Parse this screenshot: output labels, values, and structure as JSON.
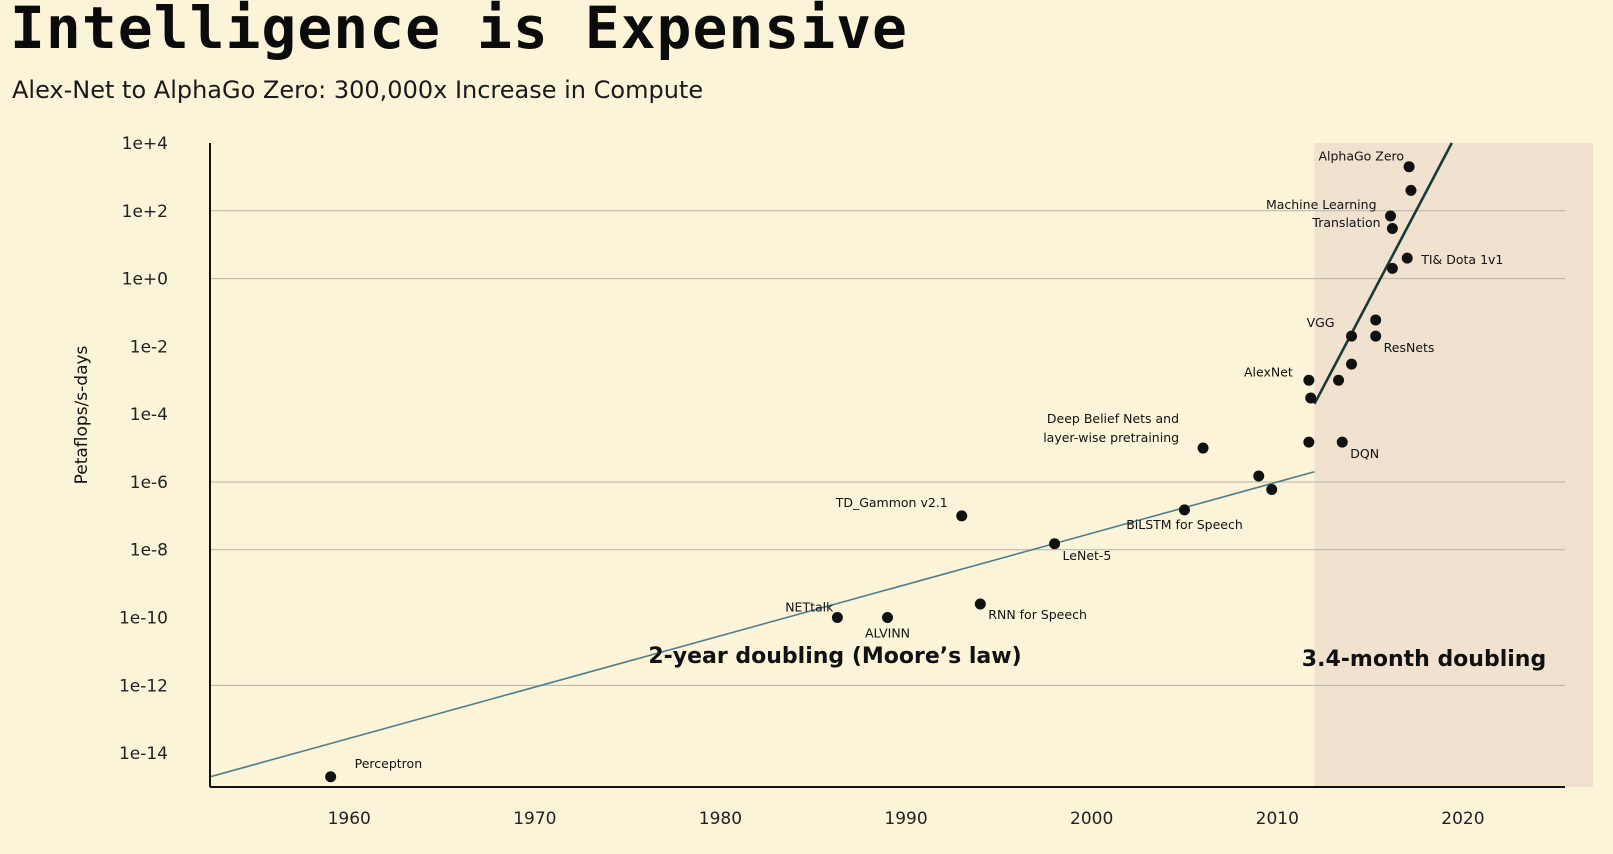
{
  "header": {
    "title": "Intelligence is Expensive",
    "subtitle": "Alex-Net to AlphaGo Zero: 300,000x Increase in Compute"
  },
  "chart_data": {
    "type": "scatter",
    "title": "Intelligence is Expensive",
    "subtitle": "Alex-Net to AlphaGo Zero: 300,000x Increase in Compute",
    "xlabel": "",
    "ylabel": "Petaflops/s-days",
    "yscale": "log",
    "xlim": [
      1952.5,
      2025.5
    ],
    "ylim": [
      1e-15,
      10000.0
    ],
    "x_ticks": [
      1960,
      1970,
      1980,
      1990,
      2000,
      2010,
      2020
    ],
    "y_ticks": [
      {
        "value": 10000.0,
        "label": "1e+4"
      },
      {
        "value": 100.0,
        "label": "1e+2"
      },
      {
        "value": 1,
        "label": "1e+0"
      },
      {
        "value": 0.01,
        "label": "1e-2"
      },
      {
        "value": 0.0001,
        "label": "1e-4"
      },
      {
        "value": 1e-06,
        "label": "1e-6"
      },
      {
        "value": 1e-08,
        "label": "1e-8"
      },
      {
        "value": 1e-10,
        "label": "1e-10"
      },
      {
        "value": 1e-12,
        "label": "1e-12"
      },
      {
        "value": 1e-14,
        "label": "1e-14"
      }
    ],
    "grid_lines": [
      100.0,
      1,
      1e-06,
      1e-08,
      1e-12
    ],
    "points": [
      {
        "label": "Perceptron",
        "x": 1959,
        "y": 2e-15
      },
      {
        "label": "NETtalk",
        "x": 1986.3,
        "y": 1e-10
      },
      {
        "label": "ALVINN",
        "x": 1989,
        "y": 1e-10
      },
      {
        "label": "TD_Gammon v2.1",
        "x": 1993,
        "y": 1e-07
      },
      {
        "label": "RNN for Speech",
        "x": 1994,
        "y": 2.5e-10
      },
      {
        "label": "LeNet-5",
        "x": 1998,
        "y": 1.5e-08
      },
      {
        "label": "BiLSTM for Speech",
        "x": 2005,
        "y": 1.5e-07
      },
      {
        "label": "Deep Belief Nets and layer-wise pretraining",
        "x": 2006,
        "y": 1e-05
      },
      {
        "label": "",
        "x": 2009,
        "y": 1.5e-06
      },
      {
        "label": "",
        "x": 2009.7,
        "y": 6e-07
      },
      {
        "label": "",
        "x": 2011.7,
        "y": 1.5e-05
      },
      {
        "label": "AlexNet",
        "x": 2011.7,
        "y": 0.001
      },
      {
        "label": "",
        "x": 2011.8,
        "y": 0.0003
      },
      {
        "label": "DQN",
        "x": 2013.5,
        "y": 1.5e-05
      },
      {
        "label": "",
        "x": 2013.3,
        "y": 0.001
      },
      {
        "label": "",
        "x": 2014,
        "y": 0.003
      },
      {
        "label": "VGG",
        "x": 2014,
        "y": 0.02
      },
      {
        "label": "ResNets",
        "x": 2015.3,
        "y": 0.02
      },
      {
        "label": "",
        "x": 2015.3,
        "y": 0.06
      },
      {
        "label": "",
        "x": 2016.2,
        "y": 2
      },
      {
        "label": "",
        "x": 2016.2,
        "y": 30.0
      },
      {
        "label": "Machine Learning Translation",
        "x": 2016.1,
        "y": 70.0
      },
      {
        "label": "TI& Dota 1v1",
        "x": 2017,
        "y": 4
      },
      {
        "label": "",
        "x": 2017.2,
        "y": 400.0
      },
      {
        "label": "AlphaGo Zero",
        "x": 2017.1,
        "y": 2000.0
      }
    ],
    "trends": [
      {
        "label": "2-year doubling (Moore's law)",
        "x": [
          1952.5,
          2012
        ],
        "y": [
          2e-15,
          2e-06
        ]
      },
      {
        "label": "3.4-month doubling",
        "x": [
          2012,
          2019.4
        ],
        "y": [
          0.0002,
          10000.0
        ]
      }
    ],
    "shaded_region": {
      "x_from": 2012,
      "x_to": 2025.5
    },
    "annotations": [
      {
        "text": "2-year doubling (Moore’s law)"
      },
      {
        "text": "3.4-month doubling"
      }
    ],
    "colors": {
      "background": "#fbf4d8",
      "shaded_region": "#f1e2cf",
      "trend_line_1": "#4d7f8c",
      "trend_line_2": "#1a3a3a",
      "points": "#111111",
      "grid": "#b7b2a4",
      "axis": "#111111"
    }
  }
}
